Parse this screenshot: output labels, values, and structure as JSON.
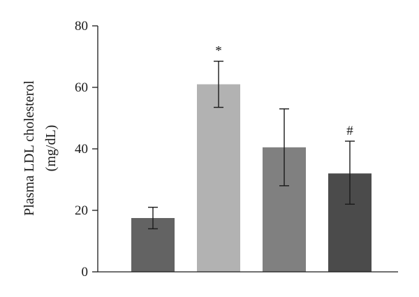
{
  "chart_data": {
    "type": "bar",
    "title": "",
    "xlabel": "",
    "ylabel_lines": [
      "Plasma LDL cholesterol",
      "(mg/dL)"
    ],
    "ylim": [
      0,
      80
    ],
    "yticks": [
      0,
      20,
      40,
      60,
      80
    ],
    "ytick_labels": [
      "0",
      "20",
      "40",
      "60",
      "80"
    ],
    "grid": false,
    "legend": "none",
    "bars": [
      {
        "value": 17.5,
        "error_low": 14.0,
        "error_high": 21.0,
        "color": "#636363",
        "annotation": ""
      },
      {
        "value": 61.0,
        "error_low": 53.5,
        "error_high": 68.5,
        "color": "#b2b2b2",
        "annotation": "*"
      },
      {
        "value": 40.5,
        "error_low": 28.0,
        "error_high": 53.0,
        "color": "#808080",
        "annotation": ""
      },
      {
        "value": 32.0,
        "error_low": 22.0,
        "error_high": 42.5,
        "color": "#4b4b4b",
        "annotation": "#"
      }
    ]
  }
}
